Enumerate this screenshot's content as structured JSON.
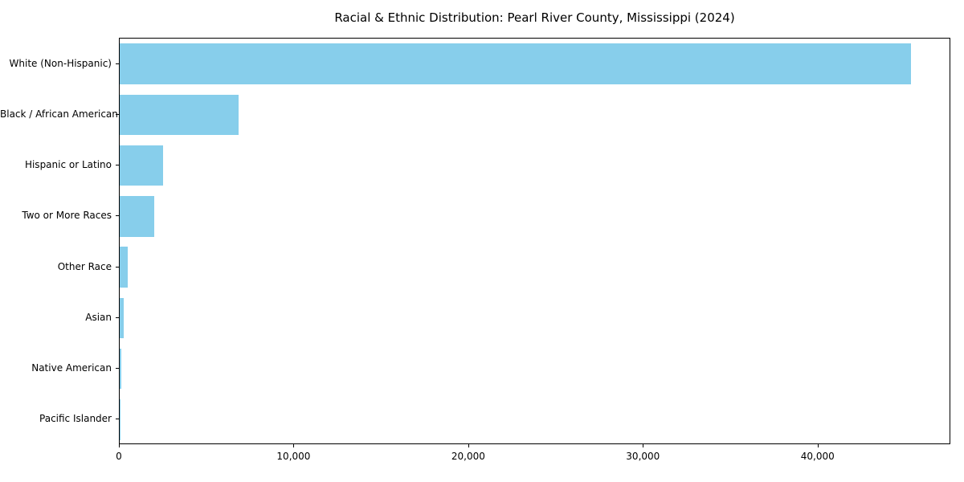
{
  "chart_data": {
    "type": "bar",
    "orientation": "horizontal",
    "title": "Racial & Ethnic Distribution: Pearl River County, Mississippi (2024)",
    "categories": [
      "White (Non-Hispanic)",
      "Black / African American",
      "Hispanic or Latino",
      "Two or More Races",
      "Other Race",
      "Asian",
      "Native American",
      "Pacific Islander"
    ],
    "values": [
      45400,
      6800,
      2500,
      2000,
      450,
      250,
      100,
      40
    ],
    "xlabel": "",
    "ylabel": "",
    "xlim": [
      0,
      47600
    ],
    "x_ticks": [
      0,
      10000,
      20000,
      30000,
      40000
    ],
    "x_tick_labels": [
      "0",
      "10,000",
      "20,000",
      "30,000",
      "40,000"
    ],
    "bar_color": "#87CEEB",
    "grid": false,
    "legend": false,
    "bar_band_fraction": 0.8
  }
}
